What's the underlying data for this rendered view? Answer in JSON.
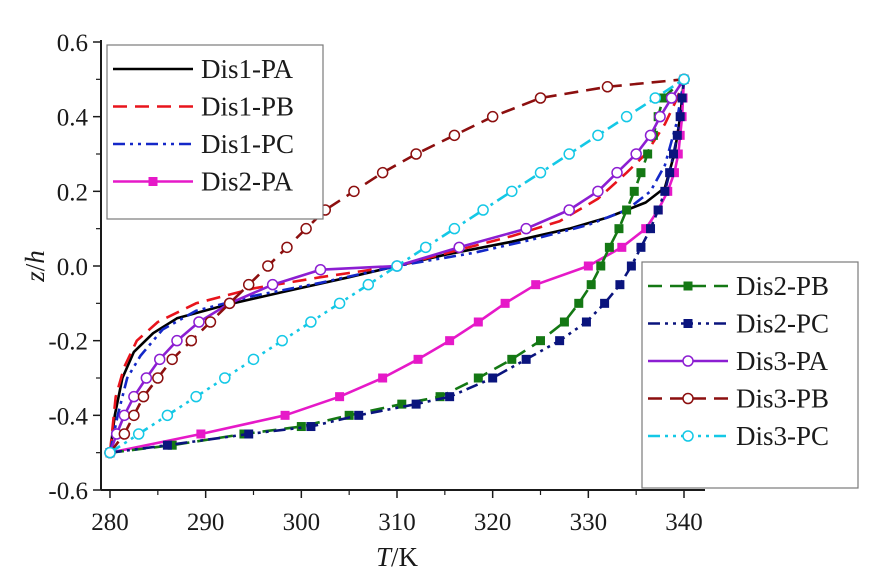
{
  "chart_data": {
    "type": "line",
    "title": "",
    "xlabel_italic": "T",
    "xlabel_rest": "/K",
    "ylabel_italic_1": "z",
    "ylabel_mid": "/",
    "ylabel_italic_2": "h",
    "xlim": [
      280,
      340
    ],
    "ylim": [
      -0.6,
      0.6
    ],
    "x_ticks": [
      "280",
      "290",
      "300",
      "310",
      "320",
      "330",
      "340"
    ],
    "x_tick_values": [
      280,
      290,
      300,
      310,
      320,
      330,
      340
    ],
    "y_ticks": [
      "-0.6",
      "-0.4",
      "-0.2",
      "0.0",
      "0.2",
      "0.4",
      "0.6"
    ],
    "y_tick_values": [
      -0.6,
      -0.4,
      -0.2,
      0.0,
      0.2,
      0.4,
      0.6
    ],
    "grid": false,
    "legend_groups": [
      {
        "placement": "top-left",
        "entries": [
          "Dis1-PA",
          "Dis1-PB",
          "Dis1-PC",
          "Dis2-PA"
        ]
      },
      {
        "placement": "bottom-right",
        "entries": [
          "Dis2-PB",
          "Dis2-PC",
          "Dis3-PA",
          "Dis3-PB",
          "Dis3-PC"
        ]
      }
    ],
    "series": [
      {
        "name": "Dis1-PA",
        "color": "#000000",
        "dash": "solid",
        "marker": "none",
        "points": [
          [
            280.0,
            -0.5
          ],
          [
            280.5,
            -0.4
          ],
          [
            281.3,
            -0.3
          ],
          [
            282.5,
            -0.23
          ],
          [
            284.5,
            -0.18
          ],
          [
            287,
            -0.14
          ],
          [
            292,
            -0.105
          ],
          [
            298,
            -0.07
          ],
          [
            305,
            -0.03
          ],
          [
            310,
            0.0
          ],
          [
            315,
            0.03
          ],
          [
            322,
            0.065
          ],
          [
            328,
            0.1
          ],
          [
            332,
            0.13
          ],
          [
            336,
            0.17
          ],
          [
            338,
            0.21
          ],
          [
            339,
            0.3
          ],
          [
            339.6,
            0.4
          ],
          [
            340,
            0.5
          ]
        ]
      },
      {
        "name": "Dis1-PB",
        "color": "#e8141c",
        "dash": "dash",
        "marker": "none",
        "points": [
          [
            280.0,
            -0.5
          ],
          [
            280.6,
            -0.35
          ],
          [
            281.5,
            -0.27
          ],
          [
            282.8,
            -0.2
          ],
          [
            285,
            -0.15
          ],
          [
            289,
            -0.1
          ],
          [
            295,
            -0.06
          ],
          [
            302,
            -0.03
          ],
          [
            310,
            0.0
          ],
          [
            316,
            0.04
          ],
          [
            322,
            0.08
          ],
          [
            327,
            0.12
          ],
          [
            331,
            0.18
          ],
          [
            334,
            0.25
          ],
          [
            336,
            0.3
          ],
          [
            338,
            0.38
          ],
          [
            339.3,
            0.45
          ],
          [
            340,
            0.5
          ]
        ]
      },
      {
        "name": "Dis1-PC",
        "color": "#1428c8",
        "dash": "dashdotdot",
        "marker": "none",
        "points": [
          [
            280.0,
            -0.5
          ],
          [
            280.8,
            -0.4
          ],
          [
            281.8,
            -0.3
          ],
          [
            283.2,
            -0.24
          ],
          [
            285.5,
            -0.17
          ],
          [
            289,
            -0.12
          ],
          [
            295,
            -0.08
          ],
          [
            302,
            -0.045
          ],
          [
            310,
            0.0
          ],
          [
            318,
            0.035
          ],
          [
            324,
            0.07
          ],
          [
            330,
            0.11
          ],
          [
            334,
            0.15
          ],
          [
            336.5,
            0.2
          ],
          [
            338,
            0.27
          ],
          [
            339.2,
            0.38
          ],
          [
            340,
            0.5
          ]
        ]
      },
      {
        "name": "Dis2-PA",
        "color": "#e619c8",
        "dash": "solid",
        "marker": "square-filled",
        "points": [
          [
            280.0,
            -0.5
          ],
          [
            289.5,
            -0.45
          ],
          [
            298.3,
            -0.4
          ],
          [
            304,
            -0.35
          ],
          [
            308.5,
            -0.3
          ],
          [
            312.2,
            -0.25
          ],
          [
            315.5,
            -0.2
          ],
          [
            318.5,
            -0.15
          ],
          [
            321.3,
            -0.1
          ],
          [
            324.5,
            -0.05
          ],
          [
            330,
            0.0
          ],
          [
            333.5,
            0.05
          ],
          [
            336,
            0.1
          ],
          [
            337.3,
            0.15
          ],
          [
            338.3,
            0.2
          ],
          [
            339,
            0.25
          ],
          [
            339.4,
            0.3
          ],
          [
            339.6,
            0.35
          ],
          [
            339.8,
            0.4
          ],
          [
            339.9,
            0.45
          ],
          [
            340,
            0.5
          ]
        ]
      },
      {
        "name": "Dis2-PB",
        "color": "#147814",
        "dash": "dash",
        "marker": "square-filled",
        "points": [
          [
            280.0,
            -0.5
          ],
          [
            286.5,
            -0.48
          ],
          [
            294,
            -0.45
          ],
          [
            300,
            -0.43
          ],
          [
            305,
            -0.4
          ],
          [
            310.5,
            -0.37
          ],
          [
            314.5,
            -0.35
          ],
          [
            318.5,
            -0.3
          ],
          [
            322,
            -0.25
          ],
          [
            325,
            -0.2
          ],
          [
            327.5,
            -0.15
          ],
          [
            329,
            -0.1
          ],
          [
            330.3,
            -0.05
          ],
          [
            331.3,
            0.0
          ],
          [
            332.2,
            0.05
          ],
          [
            333.2,
            0.1
          ],
          [
            334,
            0.15
          ],
          [
            334.8,
            0.2
          ],
          [
            335.5,
            0.25
          ],
          [
            336.2,
            0.3
          ],
          [
            336.8,
            0.35
          ],
          [
            337.3,
            0.4
          ],
          [
            337.8,
            0.45
          ],
          [
            340,
            0.5
          ]
        ]
      },
      {
        "name": "Dis2-PC",
        "color": "#0a147d",
        "dash": "dashdotdot",
        "marker": "square-filled",
        "points": [
          [
            280.0,
            -0.5
          ],
          [
            286,
            -0.48
          ],
          [
            294.5,
            -0.45
          ],
          [
            301,
            -0.43
          ],
          [
            306,
            -0.4
          ],
          [
            312,
            -0.37
          ],
          [
            315.5,
            -0.35
          ],
          [
            320,
            -0.3
          ],
          [
            323.5,
            -0.25
          ],
          [
            327,
            -0.2
          ],
          [
            329.8,
            -0.15
          ],
          [
            331.7,
            -0.1
          ],
          [
            333.3,
            -0.05
          ],
          [
            334.5,
            0.0
          ],
          [
            335.5,
            0.05
          ],
          [
            336.5,
            0.1
          ],
          [
            337.3,
            0.15
          ],
          [
            338,
            0.2
          ],
          [
            338.5,
            0.25
          ],
          [
            338.9,
            0.3
          ],
          [
            339.3,
            0.35
          ],
          [
            339.6,
            0.4
          ],
          [
            339.8,
            0.45
          ],
          [
            340,
            0.5
          ]
        ]
      },
      {
        "name": "Dis3-PA",
        "color": "#8c1ed2",
        "dash": "solid",
        "marker": "circle-open",
        "points": [
          [
            280.0,
            -0.5
          ],
          [
            280.7,
            -0.45
          ],
          [
            281.5,
            -0.4
          ],
          [
            282.5,
            -0.35
          ],
          [
            283.8,
            -0.3
          ],
          [
            285.2,
            -0.25
          ],
          [
            287,
            -0.2
          ],
          [
            289.3,
            -0.15
          ],
          [
            292.5,
            -0.1
          ],
          [
            297,
            -0.05
          ],
          [
            302,
            -0.01
          ],
          [
            310,
            0.0
          ],
          [
            316.5,
            0.05
          ],
          [
            323.5,
            0.1
          ],
          [
            328,
            0.15
          ],
          [
            331,
            0.2
          ],
          [
            333,
            0.25
          ],
          [
            335,
            0.3
          ],
          [
            336.5,
            0.35
          ],
          [
            337.5,
            0.4
          ],
          [
            338.7,
            0.45
          ],
          [
            340,
            0.5
          ]
        ]
      },
      {
        "name": "Dis3-PB",
        "color": "#8c0f0f",
        "dash": "dash",
        "marker": "circle-open",
        "points": [
          [
            280.0,
            -0.5
          ],
          [
            281.5,
            -0.45
          ],
          [
            282.5,
            -0.4
          ],
          [
            283.5,
            -0.35
          ],
          [
            285,
            -0.3
          ],
          [
            286.5,
            -0.25
          ],
          [
            288.5,
            -0.2
          ],
          [
            290.5,
            -0.15
          ],
          [
            292.5,
            -0.1
          ],
          [
            294.5,
            -0.05
          ],
          [
            296.5,
            0.0
          ],
          [
            298.5,
            0.05
          ],
          [
            300.5,
            0.1
          ],
          [
            302.5,
            0.15
          ],
          [
            305.5,
            0.2
          ],
          [
            308.5,
            0.25
          ],
          [
            312,
            0.3
          ],
          [
            316,
            0.35
          ],
          [
            320,
            0.4
          ],
          [
            325,
            0.45
          ],
          [
            332,
            0.48
          ],
          [
            340,
            0.5
          ]
        ]
      },
      {
        "name": "Dis3-PC",
        "color": "#14c8e6",
        "dash": "dashdotdot",
        "marker": "circle-open",
        "points": [
          [
            280.0,
            -0.5
          ],
          [
            283,
            -0.45
          ],
          [
            286,
            -0.4
          ],
          [
            289,
            -0.35
          ],
          [
            292,
            -0.3
          ],
          [
            295,
            -0.25
          ],
          [
            298,
            -0.2
          ],
          [
            301,
            -0.15
          ],
          [
            304,
            -0.1
          ],
          [
            307,
            -0.05
          ],
          [
            310,
            0.0
          ],
          [
            313,
            0.05
          ],
          [
            316,
            0.1
          ],
          [
            319,
            0.15
          ],
          [
            322,
            0.2
          ],
          [
            325,
            0.25
          ],
          [
            328,
            0.3
          ],
          [
            331,
            0.35
          ],
          [
            334,
            0.4
          ],
          [
            337,
            0.45
          ],
          [
            340,
            0.5
          ]
        ]
      }
    ]
  }
}
